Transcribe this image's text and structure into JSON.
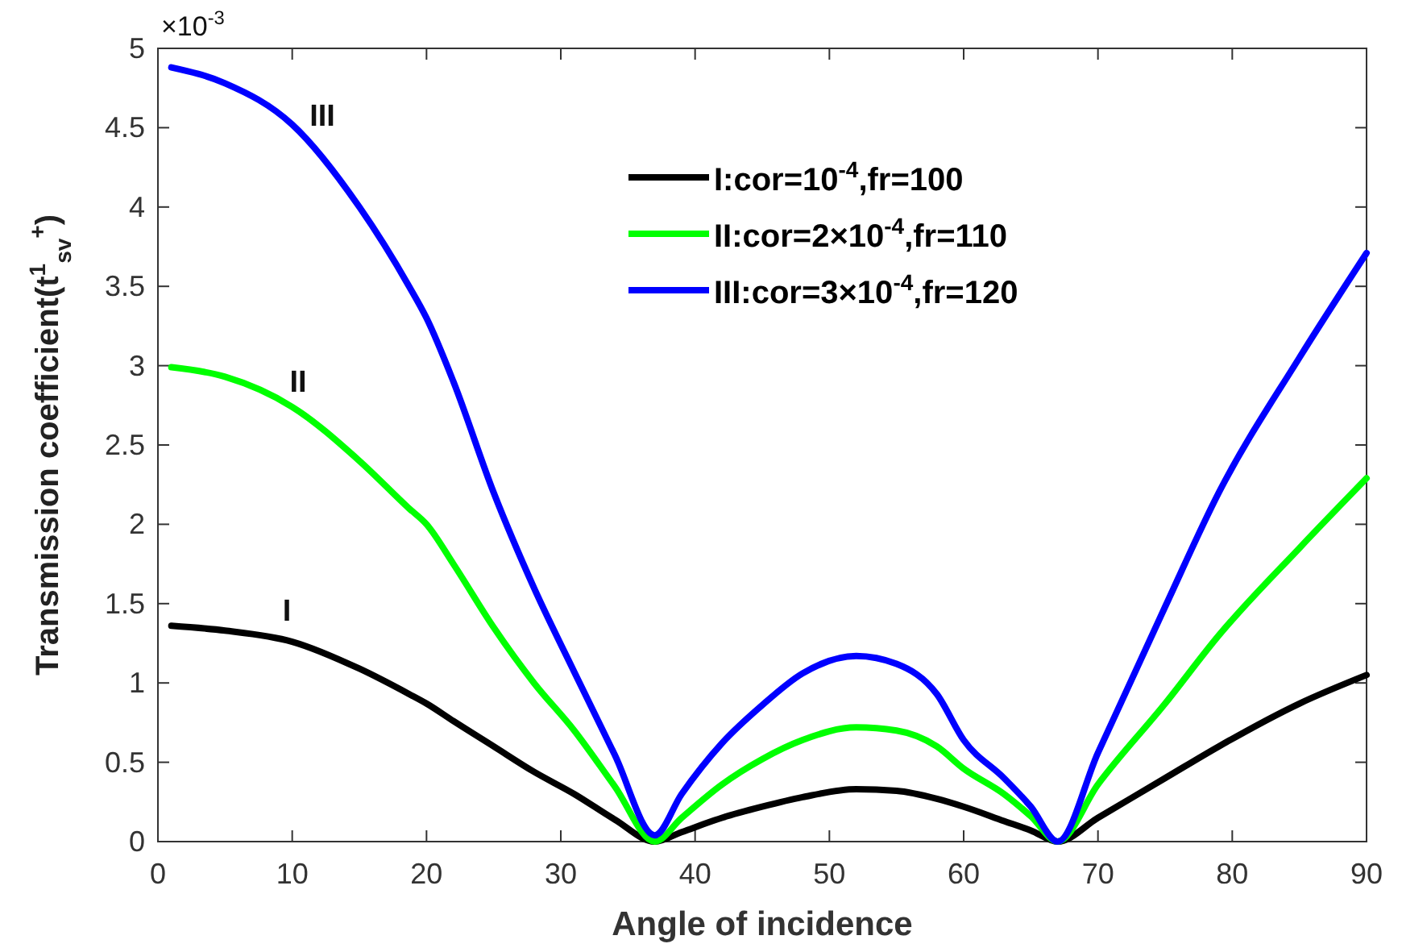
{
  "chart_data": {
    "type": "line",
    "xlabel": "Angle of incidence",
    "ylabel": "Transmission coefficient(t$^{1}$$_{sv}$$^{+}$)",
    "xlim": [
      0,
      90
    ],
    "ylim": [
      0,
      5
    ],
    "xticks": [
      0,
      10,
      20,
      30,
      40,
      50,
      60,
      70,
      80,
      90
    ],
    "yticks": [
      0,
      0.5,
      1,
      1.5,
      2,
      2.5,
      3,
      3.5,
      4,
      4.5,
      5
    ],
    "grid": false,
    "legend": "top",
    "line_style": "solid",
    "marker": "none",
    "x": [
      1,
      5,
      10,
      15,
      18.7,
      20,
      22,
      25,
      28,
      31,
      34,
      37,
      39,
      42,
      45,
      48,
      52,
      55,
      58,
      60,
      63,
      65,
      67,
      70,
      75,
      79,
      85,
      90
    ],
    "series": [
      {
        "name": "I:cor=10$^{-4}$,fr=100",
        "color": "#000000",
        "values": [
          1.36,
          1.33,
          1.26,
          1.09,
          0.93,
          0.87,
          0.76,
          0.6,
          0.44,
          0.3,
          0.14,
          0.0,
          0.06,
          0.15,
          0.22,
          0.28,
          0.33,
          0.32,
          0.27,
          0.22,
          0.13,
          0.07,
          0.0,
          0.15,
          0.4,
          0.6,
          0.87,
          1.05
        ]
      },
      {
        "name": "II:cor=2×10$^{-4}$,fr=110",
        "color": "#00ff00",
        "values": [
          2.99,
          2.93,
          2.74,
          2.4,
          2.1,
          2.0,
          1.75,
          1.35,
          1.0,
          0.7,
          0.35,
          0.0,
          0.15,
          0.36,
          0.52,
          0.64,
          0.72,
          0.7,
          0.6,
          0.46,
          0.3,
          0.16,
          0.0,
          0.36,
          0.87,
          1.3,
          1.85,
          2.29
        ]
      },
      {
        "name": "III:cor=3×10$^{-4}$,fr=120",
        "color": "#0000ff",
        "values": [
          4.88,
          4.78,
          4.52,
          4.0,
          3.5,
          3.3,
          2.9,
          2.2,
          1.6,
          1.07,
          0.55,
          0.04,
          0.3,
          0.62,
          0.86,
          1.06,
          1.17,
          1.12,
          0.93,
          0.64,
          0.4,
          0.22,
          0.0,
          0.56,
          1.48,
          2.2,
          3.05,
          3.71
        ]
      }
    ],
    "annotations": [
      "×10$^{-3}$",
      "III",
      "II",
      "I"
    ]
  }
}
